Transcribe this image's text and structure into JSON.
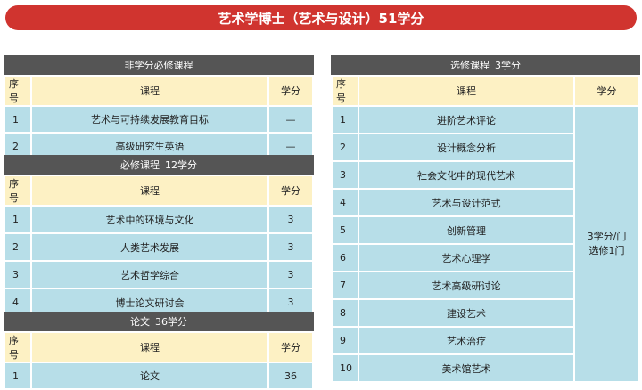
{
  "banner": {
    "title": "艺术学博士（艺术与设计）51学分"
  },
  "left_tables": [
    {
      "title": "非学分必修课程",
      "credits": "",
      "headers": {
        "num": "序号",
        "course": "课程",
        "credit": "学分"
      },
      "rows": [
        {
          "num": "1",
          "course": "艺术与可持续发展教育目标",
          "credit": "—"
        },
        {
          "num": "2",
          "course": "高级研究生英语",
          "credit": "—"
        }
      ]
    },
    {
      "title": "必修课程",
      "credits": "12学分",
      "headers": {
        "num": "序号",
        "course": "课程",
        "credit": "学分"
      },
      "rows": [
        {
          "num": "1",
          "course": "艺术中的环境与文化",
          "credit": "3"
        },
        {
          "num": "2",
          "course": "人类艺术发展",
          "credit": "3"
        },
        {
          "num": "3",
          "course": "艺术哲学综合",
          "credit": "3"
        },
        {
          "num": "4",
          "course": "博士论文研讨会",
          "credit": "3"
        }
      ]
    },
    {
      "title": "论文",
      "credits": "36学分",
      "headers": {
        "num": "序号",
        "course": "课程",
        "credit": "学分"
      },
      "rows": [
        {
          "num": "1",
          "course": "论文",
          "credit": "36"
        }
      ]
    }
  ],
  "elective": {
    "title": "选修课程",
    "credits": "3学分",
    "headers": {
      "num": "序号",
      "course": "课程",
      "credit": "学分"
    },
    "rows": [
      {
        "num": "1",
        "course": "进阶艺术评论"
      },
      {
        "num": "2",
        "course": "设计概念分析"
      },
      {
        "num": "3",
        "course": "社会文化中的现代艺术"
      },
      {
        "num": "4",
        "course": "艺术与设计范式"
      },
      {
        "num": "5",
        "course": "创新管理"
      },
      {
        "num": "6",
        "course": "艺术心理学"
      },
      {
        "num": "7",
        "course": "艺术高级研讨论"
      },
      {
        "num": "8",
        "course": "建设艺术"
      },
      {
        "num": "9",
        "course": "艺术治疗"
      },
      {
        "num": "10",
        "course": "美术馆艺术"
      }
    ],
    "merged_credit_line1": "3学分/门",
    "merged_credit_line2": "选修1门"
  },
  "colors": {
    "banner": "#d0342f",
    "panel_header": "#555555",
    "column_header": "#fdf1c4",
    "row": "#b7dee8"
  }
}
